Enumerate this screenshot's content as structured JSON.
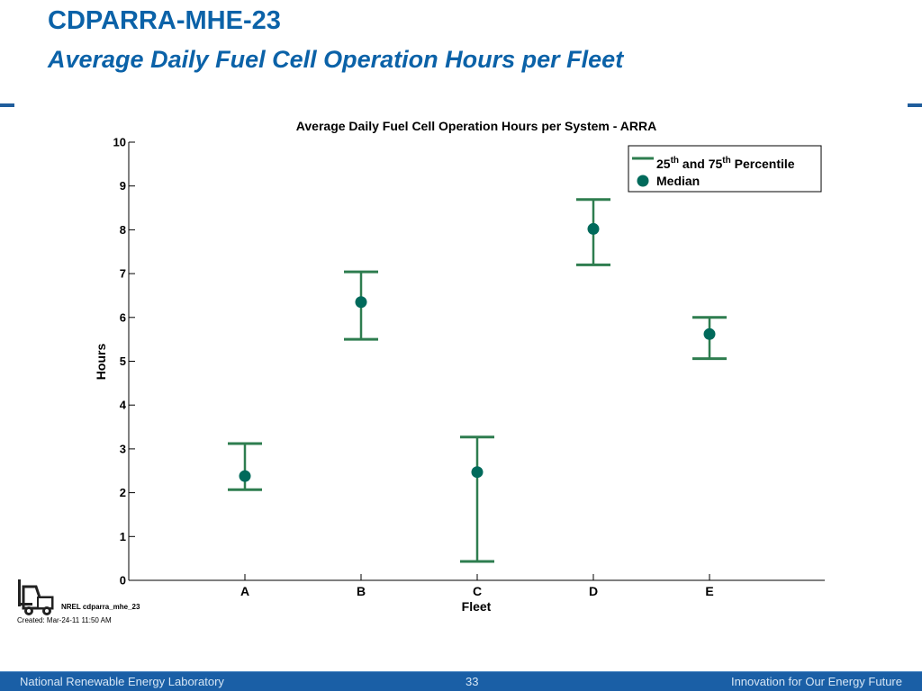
{
  "slide": {
    "title": "CDPARRA-MHE-23",
    "subtitle": "Average Daily Fuel Cell Operation Hours per Fleet"
  },
  "chart_data": {
    "type": "errorbar",
    "title": "Average Daily Fuel Cell Operation Hours per System - ARRA",
    "xlabel": "Fleet",
    "ylabel": "Hours",
    "categories": [
      "A",
      "B",
      "C",
      "D",
      "E"
    ],
    "ylim": [
      0,
      10
    ],
    "yticks": [
      0,
      1,
      2,
      3,
      4,
      5,
      6,
      7,
      8,
      9,
      10
    ],
    "grid": false,
    "legend_position": "top-right",
    "legend": {
      "percentile_label_base1": "25",
      "percentile_label_sup1": "th",
      "percentile_label_mid": " and 75",
      "percentile_label_sup2": "th",
      "percentile_label_end": " Percentile",
      "median_label": "Median"
    },
    "series": [
      {
        "name": "Median",
        "values": [
          2.38,
          6.35,
          2.47,
          8.02,
          5.62
        ]
      },
      {
        "name": "25th Percentile",
        "values": [
          2.07,
          5.5,
          0.43,
          7.2,
          5.06
        ]
      },
      {
        "name": "75th Percentile",
        "values": [
          3.12,
          7.04,
          3.27,
          8.69,
          6.0
        ]
      }
    ],
    "colors": {
      "percentile": "#2e7d4f",
      "median": "#006a5b"
    }
  },
  "footnotes": {
    "nrel_id": "NREL cdparra_mhe_23",
    "created": "Created: Mar-24-11 11:50 AM",
    "logo_icon": "forklift-icon"
  },
  "footer": {
    "left": "National Renewable Energy Laboratory",
    "page": "33",
    "right": "Innovation for Our Energy Future",
    "background": "#1a5fa6"
  }
}
